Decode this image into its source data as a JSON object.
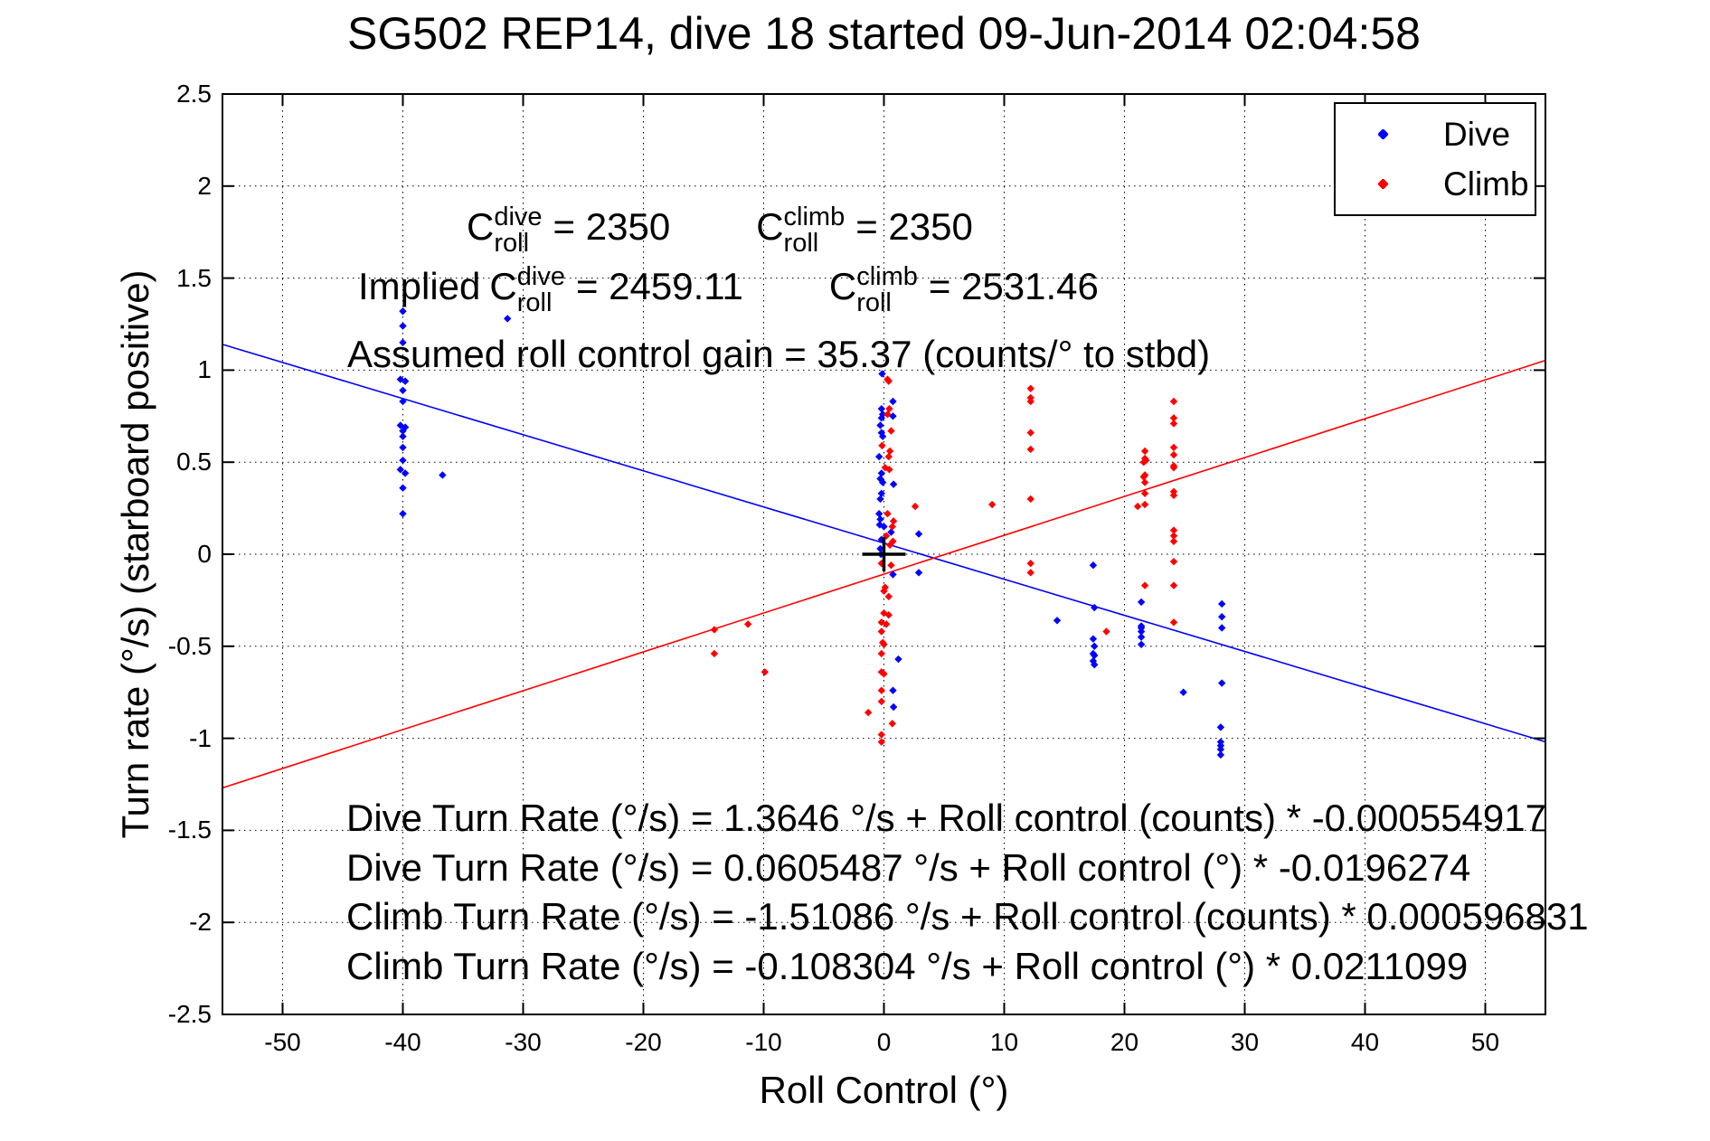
{
  "chart_data": {
    "type": "scatter",
    "title": "SG502 REP14, dive 18 started 09-Jun-2014 02:04:58",
    "xlabel": "Roll Control (°)",
    "ylabel": "Turn rate (°/s) (starboard positive)",
    "xlim": [
      -55,
      55
    ],
    "ylim": [
      -2.5,
      2.5
    ],
    "xticks": [
      -50,
      -40,
      -30,
      -20,
      -10,
      0,
      10,
      20,
      30,
      40,
      50
    ],
    "yticks": [
      -2.5,
      -2,
      -1.5,
      -1,
      -0.5,
      0,
      0.5,
      1,
      1.5,
      2,
      2.5
    ],
    "grid": true,
    "axis_color": "#000000",
    "legend": {
      "position": "top-right",
      "items": [
        {
          "label": "Dive",
          "color": "#0000ff"
        },
        {
          "label": "Climb",
          "color": "#ff0000"
        }
      ]
    },
    "series": [
      {
        "name": "Dive",
        "color": "#0000ff",
        "marker": "point",
        "points": [
          [
            -40,
            1.32
          ],
          [
            -40,
            1.24
          ],
          [
            -40,
            1.15
          ],
          [
            -40.2,
            0.95
          ],
          [
            -39.8,
            0.94
          ],
          [
            -40,
            0.89
          ],
          [
            -40,
            0.83
          ],
          [
            -40.2,
            0.7
          ],
          [
            -39.8,
            0.69
          ],
          [
            -40,
            0.67
          ],
          [
            -40,
            0.64
          ],
          [
            -40,
            0.58
          ],
          [
            -40,
            0.51
          ],
          [
            -40.2,
            0.46
          ],
          [
            -39.8,
            0.44
          ],
          [
            -40,
            0.36
          ],
          [
            -40,
            0.22
          ],
          [
            -36.7,
            0.43
          ],
          [
            -31.3,
            1.28
          ],
          [
            -0.15,
            0.98
          ],
          [
            0.75,
            0.83
          ],
          [
            -0.2,
            0.79
          ],
          [
            -0.1,
            0.76
          ],
          [
            0.75,
            0.75
          ],
          [
            -0.2,
            0.74
          ],
          [
            -0.3,
            0.7
          ],
          [
            -0.2,
            0.66
          ],
          [
            -0.1,
            0.64
          ],
          [
            -0.4,
            0.53
          ],
          [
            -0.2,
            0.44
          ],
          [
            -0.3,
            0.41
          ],
          [
            -0.1,
            0.39
          ],
          [
            0.8,
            0.38
          ],
          [
            -0.2,
            0.33
          ],
          [
            -0.3,
            0.3
          ],
          [
            -0.4,
            0.22
          ],
          [
            -0.3,
            0.19
          ],
          [
            -0.35,
            0.16
          ],
          [
            0,
            0.15
          ],
          [
            0.6,
            0.12
          ],
          [
            2.9,
            0.11
          ],
          [
            -0.2,
            0.08
          ],
          [
            -0.3,
            0.03
          ],
          [
            -0.25,
            0.0
          ],
          [
            0.75,
            -0.11
          ],
          [
            2.9,
            -0.1
          ],
          [
            1.2,
            -0.57
          ],
          [
            0.75,
            -0.74
          ],
          [
            0.8,
            -0.83
          ],
          [
            14.4,
            -0.36
          ],
          [
            17.4,
            -0.06
          ],
          [
            17.5,
            -0.29
          ],
          [
            17.4,
            -0.46
          ],
          [
            17.5,
            -0.5
          ],
          [
            17.4,
            -0.54
          ],
          [
            17.5,
            -0.55
          ],
          [
            17.4,
            -0.58
          ],
          [
            17.5,
            -0.6
          ],
          [
            21.4,
            -0.26
          ],
          [
            21.4,
            -0.39
          ],
          [
            21.4,
            -0.4
          ],
          [
            21.4,
            -0.42
          ],
          [
            21.4,
            -0.45
          ],
          [
            21.4,
            -0.49
          ],
          [
            24.9,
            -0.75
          ],
          [
            28.1,
            -0.27
          ],
          [
            28.1,
            -0.34
          ],
          [
            28.1,
            -0.4
          ],
          [
            28.1,
            -0.7
          ],
          [
            28,
            -0.94
          ],
          [
            28,
            -1.02
          ],
          [
            28,
            -1.04
          ],
          [
            28,
            -1.06
          ],
          [
            28,
            -1.09
          ]
        ]
      },
      {
        "name": "Climb",
        "color": "#ff0000",
        "marker": "point",
        "points": [
          [
            0.3,
            0.95
          ],
          [
            0.4,
            0.94
          ],
          [
            0.45,
            0.79
          ],
          [
            0.3,
            0.76
          ],
          [
            0.6,
            0.67
          ],
          [
            -0.15,
            0.59
          ],
          [
            0.5,
            0.56
          ],
          [
            0.4,
            0.53
          ],
          [
            0.1,
            0.47
          ],
          [
            0.45,
            0.46
          ],
          [
            0.3,
            0.22
          ],
          [
            0.8,
            0.18
          ],
          [
            0.7,
            0.15
          ],
          [
            0.2,
            0.1
          ],
          [
            0.75,
            0.07
          ],
          [
            0.5,
            0.05
          ],
          [
            2.6,
            0.26
          ],
          [
            -0.2,
            -0.05
          ],
          [
            0.6,
            -0.06
          ],
          [
            0.1,
            -0.18
          ],
          [
            0,
            -0.2
          ],
          [
            0.4,
            -0.23
          ],
          [
            0,
            -0.32
          ],
          [
            0.4,
            -0.33
          ],
          [
            -0.2,
            -0.37
          ],
          [
            0.2,
            -0.38
          ],
          [
            -0.2,
            -0.42
          ],
          [
            -0.1,
            -0.48
          ],
          [
            0,
            -0.49
          ],
          [
            -0.2,
            -0.54
          ],
          [
            -0.2,
            -0.64
          ],
          [
            0,
            -0.65
          ],
          [
            -0.2,
            -0.74
          ],
          [
            -0.2,
            -0.8
          ],
          [
            -1.3,
            -0.86
          ],
          [
            0.7,
            -0.92
          ],
          [
            -0.2,
            -0.98
          ],
          [
            -0.2,
            -1.02
          ],
          [
            -14.1,
            -0.41
          ],
          [
            -11.3,
            -0.38
          ],
          [
            -14.1,
            -0.54
          ],
          [
            -9.9,
            -0.64
          ],
          [
            9.0,
            0.27
          ],
          [
            12.2,
            0.9
          ],
          [
            12.2,
            0.85
          ],
          [
            12.2,
            0.83
          ],
          [
            12.2,
            0.66
          ],
          [
            12.2,
            0.57
          ],
          [
            12.2,
            0.3
          ],
          [
            12.2,
            -0.05
          ],
          [
            12.2,
            -0.1
          ],
          [
            18.5,
            -0.42
          ],
          [
            21.1,
            0.26
          ],
          [
            21.7,
            0.56
          ],
          [
            21.7,
            0.52
          ],
          [
            21.6,
            0.5
          ],
          [
            21.8,
            0.51
          ],
          [
            21.7,
            0.43
          ],
          [
            21.6,
            0.42
          ],
          [
            21.7,
            0.39
          ],
          [
            21.7,
            0.33
          ],
          [
            21.7,
            0.27
          ],
          [
            21.7,
            -0.17
          ],
          [
            24.1,
            0.83
          ],
          [
            24.1,
            0.74
          ],
          [
            24.1,
            0.71
          ],
          [
            24.1,
            0.58
          ],
          [
            24.1,
            0.54
          ],
          [
            24.1,
            0.48
          ],
          [
            24.1,
            0.47
          ],
          [
            24.1,
            0.34
          ],
          [
            24.1,
            0.32
          ],
          [
            24.1,
            0.13
          ],
          [
            24.1,
            0.1
          ],
          [
            24.1,
            0.07
          ],
          [
            24.1,
            -0.04
          ],
          [
            24.1,
            -0.17
          ],
          [
            24.1,
            -0.37
          ]
        ]
      }
    ],
    "fit_lines": [
      {
        "name": "dive-fit",
        "color": "#0000ff",
        "intercept": 0.0605487,
        "slope": -0.0196274
      },
      {
        "name": "climb-fit",
        "color": "#ff0000",
        "intercept": -0.108304,
        "slope": 0.0211099
      }
    ],
    "origin_marker": {
      "x": 0,
      "y": 0,
      "color": "#000000",
      "type": "plus"
    }
  },
  "cr_annotations": {
    "row1": {
      "items": [
        {
          "base": "C",
          "sup": "dive",
          "sub": "roll",
          "eq": "= 2350"
        },
        {
          "base": "C",
          "sup": "climb",
          "sub": "roll",
          "eq": "= 2350"
        }
      ]
    },
    "row2": {
      "prefix": "Implied",
      "items": [
        {
          "base": "C",
          "sup": "dive",
          "sub": "roll",
          "eq": "= 2459.11"
        },
        {
          "base": "C",
          "sup": "climb",
          "sub": "roll",
          "eq": "= 2531.46"
        }
      ]
    },
    "row3": "Assumed roll control gain = 35.37 (counts/° to stbd)"
  },
  "equations": [
    "Dive Turn Rate (°/s) = 1.3646 °/s + Roll control (counts) * -0.000554917",
    "Dive Turn Rate (°/s) = 0.0605487 °/s + Roll control (°) * -0.0196274",
    "Climb Turn Rate (°/s) = -1.51086 °/s + Roll control (counts) * 0.000596831",
    "Climb Turn Rate (°/s) = -0.108304 °/s + Roll control (°) * 0.0211099"
  ]
}
